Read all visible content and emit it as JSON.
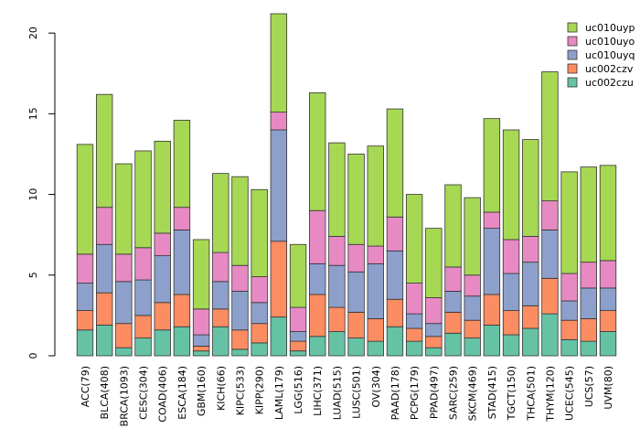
{
  "chart_data": {
    "type": "bar",
    "stacked": true,
    "title": "",
    "xlabel": "",
    "ylabel": "",
    "ylim": [
      0,
      21.2
    ],
    "yticks": [
      0,
      5,
      10,
      15,
      20
    ],
    "legend_position": "top-right",
    "categories": [
      "ACC(79)",
      "BLCA(408)",
      "BRCA(1093)",
      "CESC(304)",
      "COAD(406)",
      "ESCA(184)",
      "GBM(160)",
      "KICH(66)",
      "KIPC(533)",
      "KIPP(290)",
      "LAML(179)",
      "LGG(516)",
      "LIHC(371)",
      "LUAD(515)",
      "LUSC(501)",
      "OV(304)",
      "PAAD(178)",
      "PCPG(179)",
      "PPAD(497)",
      "SARC(259)",
      "SKCM(469)",
      "STAD(415)",
      "TGCT(150)",
      "THCA(501)",
      "THYM(120)",
      "UCEC(545)",
      "UCS(57)",
      "UVM(80)"
    ],
    "series": [
      {
        "name": "uc002czu",
        "color": "#66c2a5",
        "values": [
          1.6,
          1.9,
          0.5,
          1.1,
          1.6,
          1.8,
          0.3,
          1.8,
          0.4,
          0.8,
          2.4,
          0.3,
          1.2,
          1.5,
          1.1,
          0.9,
          1.8,
          0.9,
          0.5,
          1.4,
          1.1,
          1.9,
          1.3,
          1.7,
          2.6,
          1.0,
          0.9,
          1.5
        ]
      },
      {
        "name": "uc002czv",
        "color": "#fc8d62",
        "values": [
          1.2,
          2.0,
          1.5,
          1.4,
          1.7,
          2.0,
          0.3,
          1.1,
          1.2,
          1.2,
          4.7,
          0.6,
          2.6,
          1.5,
          1.6,
          1.4,
          1.7,
          0.8,
          0.7,
          1.3,
          1.1,
          1.9,
          1.5,
          1.4,
          2.2,
          1.2,
          1.4,
          1.3
        ]
      },
      {
        "name": "uc010uyq",
        "color": "#8da0cb",
        "values": [
          1.7,
          3.0,
          2.6,
          2.2,
          2.9,
          4.0,
          0.7,
          1.7,
          2.4,
          1.3,
          6.9,
          0.6,
          1.9,
          2.6,
          2.5,
          3.4,
          3.0,
          0.9,
          0.8,
          1.3,
          1.5,
          4.1,
          2.3,
          2.7,
          3.0,
          1.2,
          1.9,
          1.4
        ]
      },
      {
        "name": "uc010uyo",
        "color": "#e78ac3",
        "values": [
          1.8,
          2.3,
          1.7,
          2.0,
          1.4,
          1.4,
          1.6,
          1.8,
          1.6,
          1.6,
          1.1,
          1.5,
          3.3,
          1.8,
          1.7,
          1.1,
          2.1,
          1.9,
          1.6,
          1.5,
          1.3,
          1.0,
          2.1,
          1.6,
          1.8,
          1.7,
          1.6,
          1.7
        ]
      },
      {
        "name": "uc010uyp",
        "color": "#a6d854",
        "values": [
          6.8,
          7.0,
          5.6,
          6.0,
          5.7,
          5.4,
          4.3,
          4.9,
          5.5,
          5.4,
          6.1,
          3.9,
          7.3,
          5.8,
          5.6,
          6.2,
          6.7,
          5.5,
          4.3,
          5.1,
          4.8,
          5.8,
          6.8,
          6.0,
          8.0,
          6.3,
          5.9,
          5.9
        ]
      }
    ]
  }
}
